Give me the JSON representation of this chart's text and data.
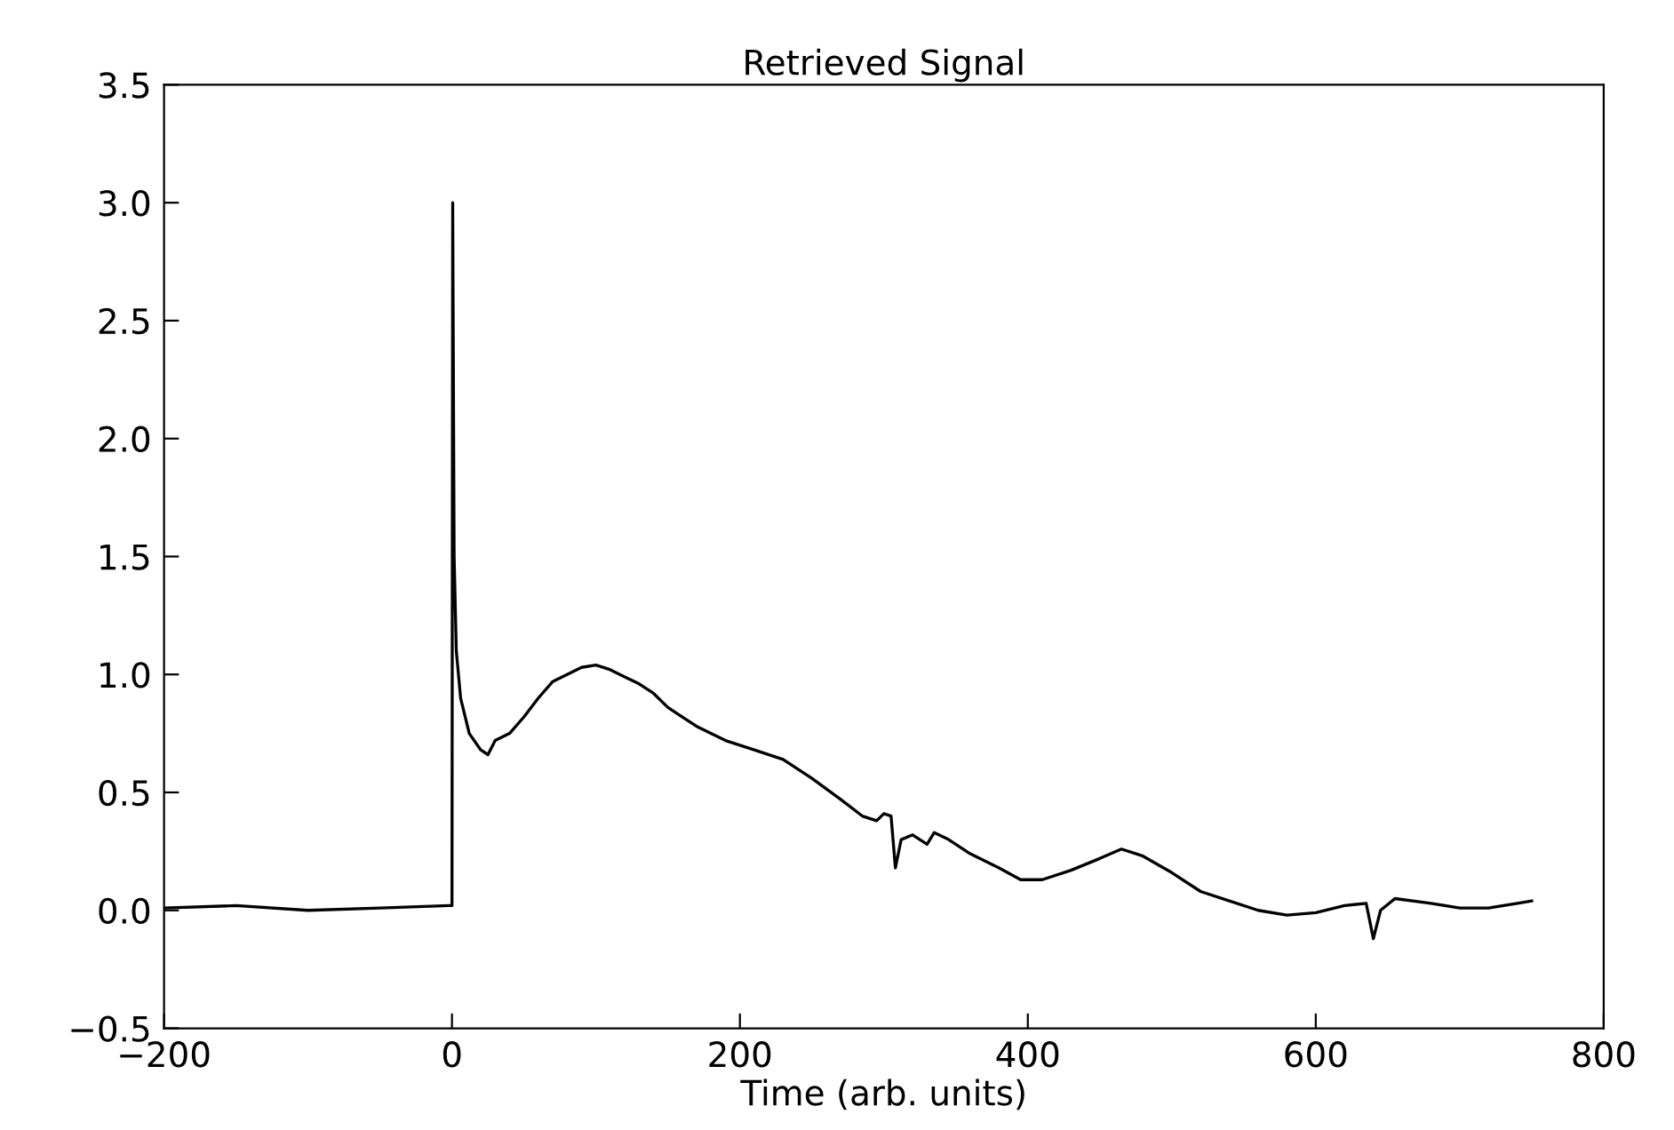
{
  "chart_data": {
    "type": "line",
    "title": "Retrieved Signal",
    "xlabel": "Time (arb. units)",
    "xlim": [
      -200,
      800
    ],
    "xticks": [
      {
        "value": -200,
        "label": "−200"
      },
      0,
      200,
      400,
      600,
      800
    ],
    "ylim": [
      -0.5,
      3.5
    ],
    "yticks": [
      {
        "value": -0.5,
        "label": "−0.5"
      },
      {
        "value": 0,
        "label": "0.0"
      },
      0.5,
      {
        "value": 1,
        "label": "1.0"
      },
      1.5,
      {
        "value": 2,
        "label": "2.0"
      },
      2.5,
      {
        "value": 3,
        "label": "3.0"
      },
      3.5
    ],
    "grid": false,
    "legend": false,
    "series": [
      {
        "color": "#000000",
        "x": [
          -200,
          -150,
          -100,
          -50,
          -2,
          0,
          0.5,
          1.5,
          3,
          6,
          12,
          20,
          25,
          30,
          40,
          50,
          60,
          70,
          80,
          90,
          100,
          110,
          120,
          130,
          140,
          150,
          170,
          190,
          210,
          230,
          250,
          270,
          285,
          295,
          300,
          305,
          308,
          312,
          320,
          330,
          335,
          345,
          360,
          380,
          395,
          410,
          430,
          450,
          465,
          480,
          500,
          520,
          540,
          560,
          580,
          600,
          620,
          635,
          640,
          645,
          655,
          680,
          700,
          720,
          740,
          750
        ],
        "values": [
          0.01,
          0.02,
          0.0,
          0.01,
          0.02,
          0.02,
          3.0,
          1.5,
          1.1,
          0.9,
          0.75,
          0.68,
          0.66,
          0.72,
          0.75,
          0.82,
          0.9,
          0.97,
          1.0,
          1.03,
          1.04,
          1.02,
          0.99,
          0.96,
          0.92,
          0.86,
          0.78,
          0.72,
          0.68,
          0.64,
          0.56,
          0.47,
          0.4,
          0.38,
          0.41,
          0.4,
          0.18,
          0.3,
          0.32,
          0.28,
          0.33,
          0.3,
          0.24,
          0.18,
          0.13,
          0.13,
          0.17,
          0.22,
          0.26,
          0.23,
          0.16,
          0.08,
          0.04,
          0.0,
          -0.02,
          -0.01,
          0.02,
          0.03,
          -0.12,
          0.0,
          0.05,
          0.03,
          0.01,
          0.01,
          0.03,
          0.04
        ]
      }
    ]
  }
}
